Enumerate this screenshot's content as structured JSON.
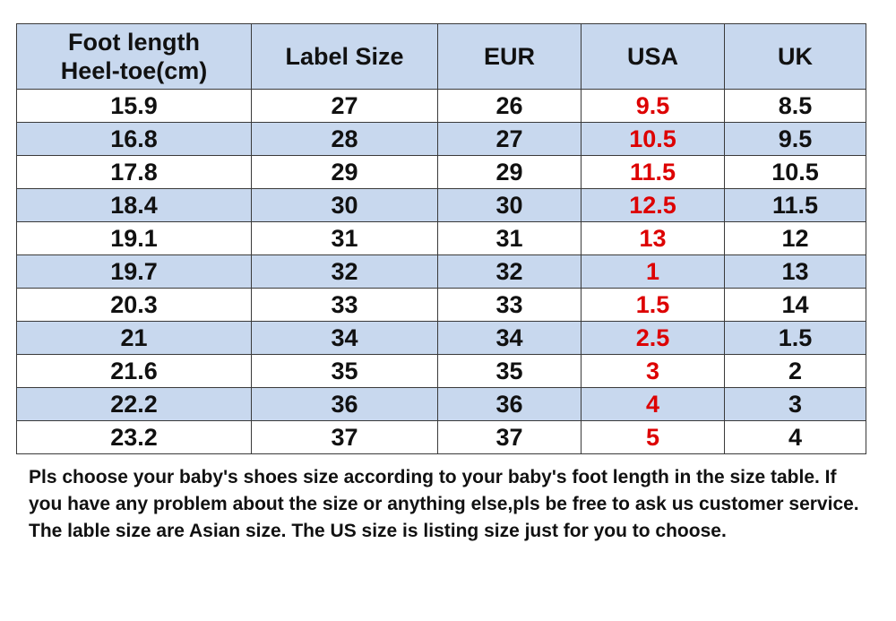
{
  "table": {
    "headers": {
      "foot_length_line1": "Foot length",
      "foot_length_line2": "Heel-toe(cm)",
      "label_size": "Label Size",
      "eur": "EUR",
      "usa": "USA",
      "uk": "UK"
    },
    "rows": [
      {
        "foot": "15.9",
        "label": "27",
        "eur": "26",
        "usa": "9.5",
        "uk": "8.5"
      },
      {
        "foot": "16.8",
        "label": "28",
        "eur": "27",
        "usa": "10.5",
        "uk": "9.5"
      },
      {
        "foot": "17.8",
        "label": "29",
        "eur": "29",
        "usa": "11.5",
        "uk": "10.5"
      },
      {
        "foot": "18.4",
        "label": "30",
        "eur": "30",
        "usa": "12.5",
        "uk": "11.5"
      },
      {
        "foot": "19.1",
        "label": "31",
        "eur": "31",
        "usa": "13",
        "uk": "12"
      },
      {
        "foot": "19.7",
        "label": "32",
        "eur": "32",
        "usa": "1",
        "uk": "13"
      },
      {
        "foot": "20.3",
        "label": "33",
        "eur": "33",
        "usa": "1.5",
        "uk": "14"
      },
      {
        "foot": "21",
        "label": "34",
        "eur": "34",
        "usa": "2.5",
        "uk": "1.5"
      },
      {
        "foot": "21.6",
        "label": "35",
        "eur": "35",
        "usa": "3",
        "uk": "2"
      },
      {
        "foot": "22.2",
        "label": "36",
        "eur": "36",
        "usa": "4",
        "uk": "3"
      },
      {
        "foot": "23.2",
        "label": "37",
        "eur": "37",
        "usa": "5",
        "uk": "4"
      }
    ]
  },
  "note": "Pls choose your baby's shoes size according to your baby's foot length in the size table. If you have any problem about the size or anything else,pls be free to ask us customer service. The lable size are Asian size. The US size is listing size  just for you to choose.",
  "colors": {
    "header_bg": "#c8d8ee",
    "stripe_bg": "#c8d8ee",
    "usa_text": "#dd0000",
    "text": "#111111"
  }
}
